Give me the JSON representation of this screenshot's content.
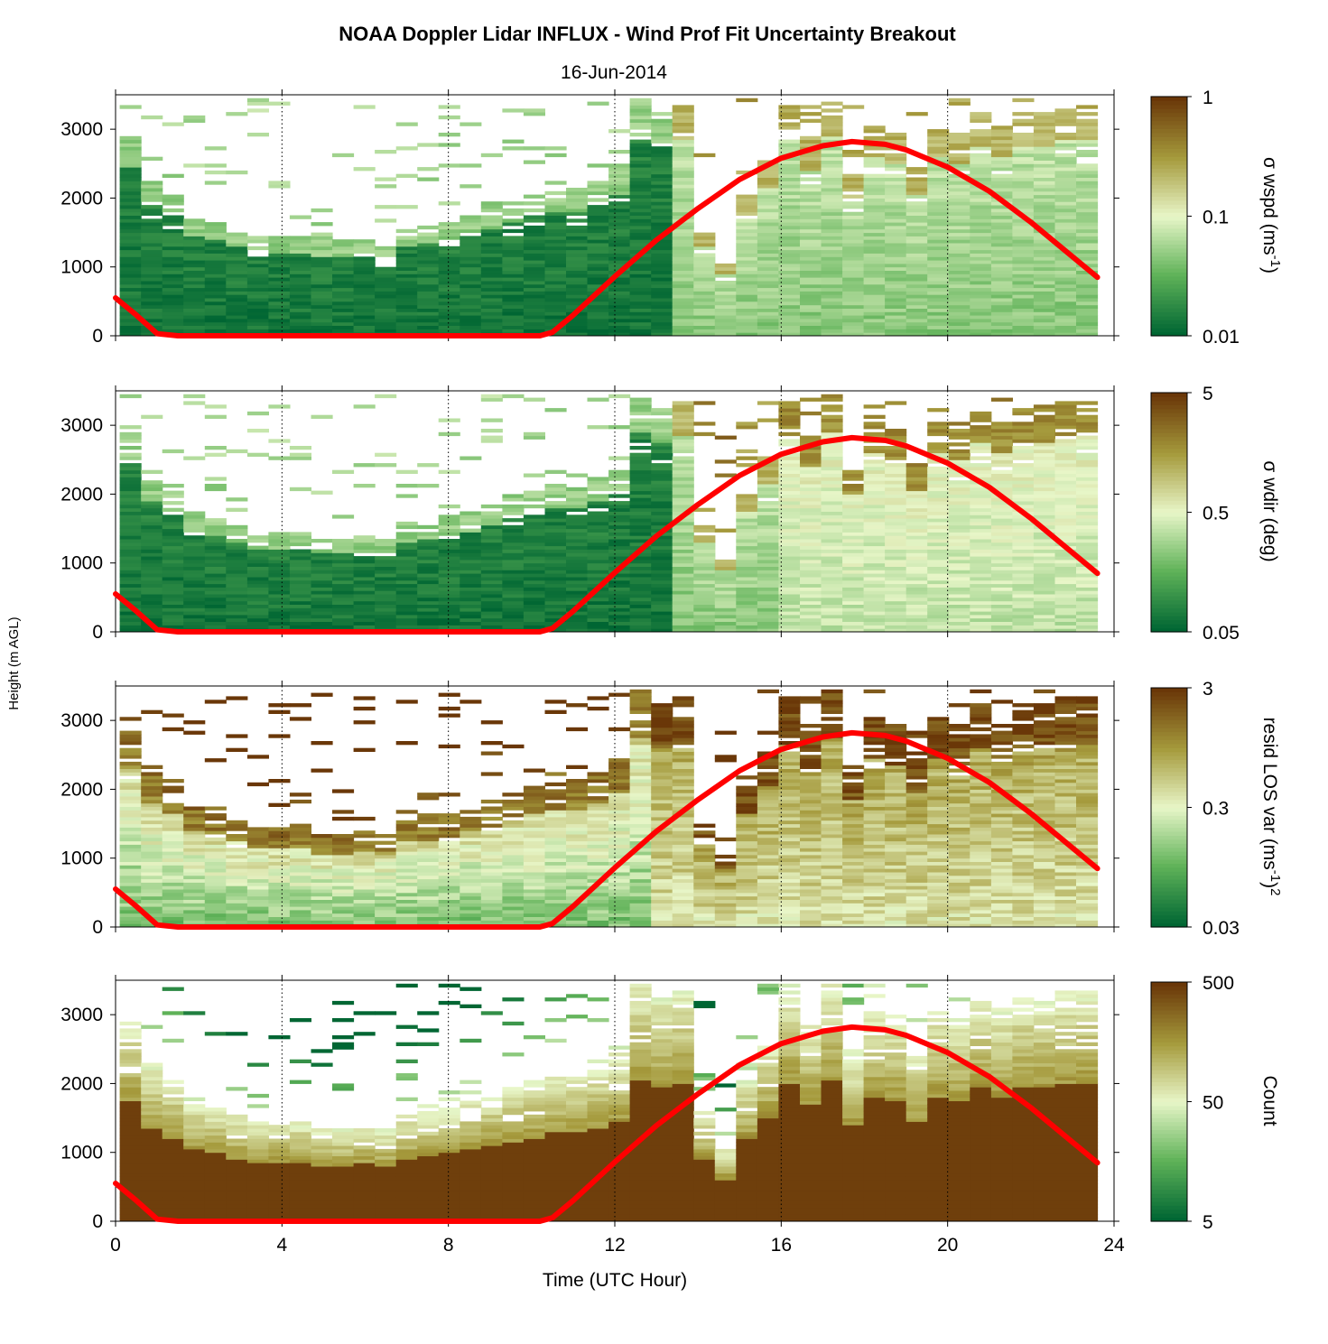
{
  "title": "NOAA Doppler Lidar INFLUX - Wind Prof Fit Uncertainty Breakout",
  "subtitle": "16-Jun-2014",
  "ylabel": "Height (m AGL)",
  "xlabel": "Time (UTC Hour)",
  "chart_data": {
    "type": "heatmap",
    "x_range": [
      0,
      24
    ],
    "y_range": [
      0,
      3500
    ],
    "x_ticks": [
      "0",
      "4",
      "8",
      "12",
      "16",
      "20",
      "24"
    ],
    "y_ticks": [
      "0",
      "1000",
      "2000",
      "3000"
    ],
    "grid": "dotted vertical lines at 4-hour intervals",
    "overlay_color": "#ff0000",
    "overlay_line": {
      "name": "",
      "x": [
        0,
        0.5,
        1,
        1.5,
        10.2,
        10.5,
        11,
        12,
        13,
        14,
        15,
        16,
        17,
        17.7,
        18.5,
        19,
        20,
        21,
        22,
        23,
        23.6
      ],
      "y": [
        550,
        300,
        30,
        0,
        0,
        50,
        300,
        860,
        1390,
        1850,
        2270,
        2580,
        2760,
        2820,
        2780,
        2700,
        2450,
        2100,
        1650,
        1150,
        850
      ]
    },
    "panels": [
      {
        "cbar_label": "σ wspd (ms",
        "cbar_sup": "-1",
        "cbar_tail": ")",
        "cbar_ticks": [
          "1",
          "0.1",
          "0.01"
        ],
        "colors": [
          "#006633",
          "#5fb258",
          "#e8f6c8",
          "#a59a3c",
          "#6a3708"
        ]
      },
      {
        "cbar_label": "σ wdir (deg)",
        "cbar_sup": "",
        "cbar_tail": "",
        "cbar_ticks": [
          "5",
          "0.5",
          "0.05"
        ],
        "colors": [
          "#006633",
          "#5fb258",
          "#e8f6c8",
          "#a59a3c",
          "#6a3708"
        ]
      },
      {
        "cbar_label": "resid LOS var (ms",
        "cbar_sup": "-1",
        "cbar_tail": ")",
        "cbar_sup2": "2",
        "cbar_ticks": [
          "3",
          "0.3",
          "0.03"
        ],
        "colors": [
          "#006633",
          "#5fb258",
          "#e8f6c8",
          "#a59a3c",
          "#6a3708"
        ]
      },
      {
        "cbar_label": "Count",
        "cbar_sup": "",
        "cbar_tail": "",
        "cbar_ticks": [
          "500",
          "50",
          "5"
        ],
        "colors": [
          "#006633",
          "#5fb258",
          "#e8f6c8",
          "#a59a3c",
          "#6a3708"
        ]
      }
    ]
  }
}
